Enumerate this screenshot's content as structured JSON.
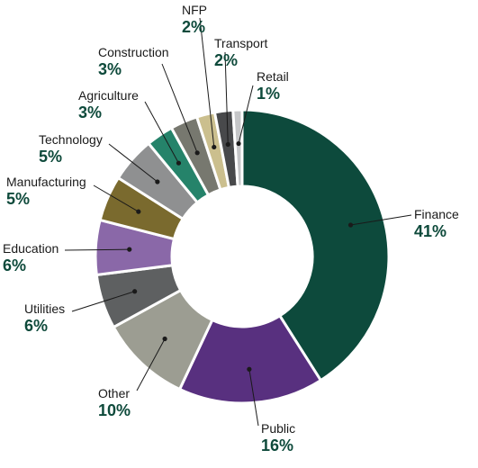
{
  "chart_data": {
    "type": "pie",
    "variant": "donut",
    "slices": [
      {
        "name": "Finance",
        "value": 41,
        "label": "41%",
        "color": "#0d4a3c"
      },
      {
        "name": "Public",
        "value": 16,
        "label": "16%",
        "color": "#58307f"
      },
      {
        "name": "Other",
        "value": 10,
        "label": "10%",
        "color": "#9c9d92"
      },
      {
        "name": "Utilities",
        "value": 6,
        "label": "6%",
        "color": "#5e6061"
      },
      {
        "name": "Education",
        "value": 6,
        "label": "6%",
        "color": "#8a68a8"
      },
      {
        "name": "Manufacturing",
        "value": 5,
        "label": "5%",
        "color": "#7a6a2e"
      },
      {
        "name": "Technology",
        "value": 5,
        "label": "5%",
        "color": "#8f9091"
      },
      {
        "name": "Agriculture",
        "value": 3,
        "label": "3%",
        "color": "#25836a"
      },
      {
        "name": "Construction",
        "value": 3,
        "label": "3%",
        "color": "#77786f"
      },
      {
        "name": "NFP",
        "value": 2,
        "label": "2%",
        "color": "#cbbf8e"
      },
      {
        "name": "Transport",
        "value": 2,
        "label": "2%",
        "color": "#48494b"
      },
      {
        "name": "Retail",
        "value": 1,
        "label": "1%",
        "color": "#c5c6c8"
      }
    ],
    "start_angle_deg": 0,
    "direction": "clockwise",
    "label_color": "#0e4a3b"
  }
}
